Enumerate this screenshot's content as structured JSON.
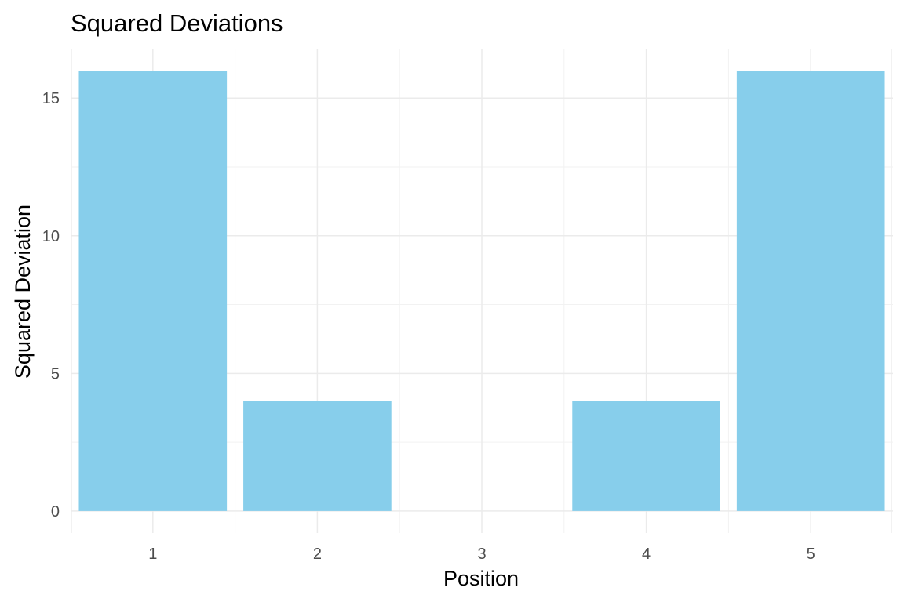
{
  "chart_data": {
    "type": "bar",
    "title": "Squared Deviations",
    "xlabel": "Position",
    "ylabel": "Squared Deviation",
    "categories": [
      "1",
      "2",
      "3",
      "4",
      "5"
    ],
    "values": [
      16,
      4,
      0,
      4,
      16
    ],
    "ylim": [
      -0.8,
      16.8
    ],
    "yticks": [
      0,
      5,
      10,
      15
    ],
    "grid": true,
    "legend": "none",
    "bar_color": "#87CEEB",
    "grid_color": "#EBEBEB"
  }
}
